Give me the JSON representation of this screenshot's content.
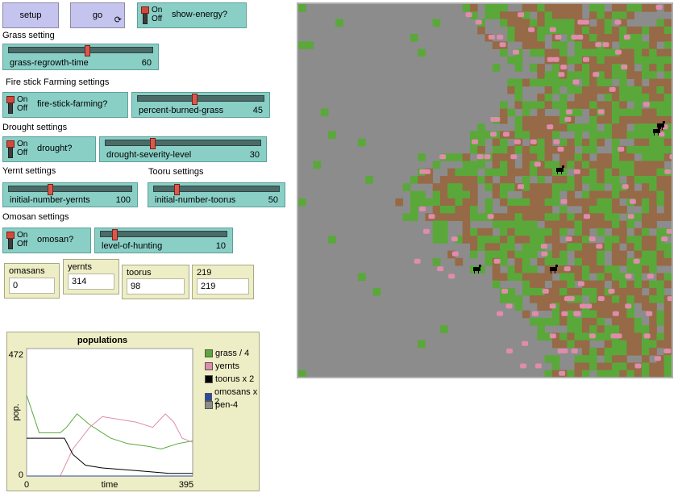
{
  "buttons": {
    "setup": "setup",
    "go": "go"
  },
  "show_energy": {
    "on": "On",
    "off": "Off",
    "label": "show-energy?"
  },
  "sections": {
    "grass": "Grass setting",
    "fire": "Fire stick Farming settings",
    "drought": "Drought settings",
    "yernt": "Yernt settings",
    "tooru": "Tooru settings",
    "omosan": "Omosan settings"
  },
  "sliders": {
    "grass_regrowth": {
      "name": "grass-regrowth-time",
      "value": "60",
      "fraction": 0.55
    },
    "percent_burned": {
      "name": "percent-burned-grass",
      "value": "45",
      "fraction": 0.45
    },
    "drought_severity": {
      "name": "drought-severity-level",
      "value": "30",
      "fraction": 0.3
    },
    "initial_yernts": {
      "name": "initial-number-yernts",
      "value": "100",
      "fraction": 0.33
    },
    "initial_toorus": {
      "name": "initial-number-toorus",
      "value": "50",
      "fraction": 0.17
    },
    "level_hunting": {
      "name": "level-of-hunting",
      "value": "10",
      "fraction": 0.1
    }
  },
  "switches": {
    "fire": {
      "on": "On",
      "off": "Off",
      "label": "fire-stick-farming?"
    },
    "drought": {
      "on": "On",
      "off": "Off",
      "label": "drought?"
    },
    "omosan": {
      "on": "On",
      "off": "Off",
      "label": "omosan?"
    }
  },
  "monitors": [
    {
      "label": "omasans",
      "value": "0"
    },
    {
      "label": "yernts",
      "value": "314"
    },
    {
      "label": "toorus",
      "value": "98"
    },
    {
      "label": "219",
      "value": "219"
    }
  ],
  "colors": {
    "grass": "#5aa83a",
    "dirt": "#966a46",
    "world": "#8c8c8c",
    "yernt": "#e08cac",
    "tooru": "#000000"
  },
  "chart_data": {
    "type": "line",
    "title": "populations",
    "xlabel": "time",
    "ylabel": "pop.",
    "xlim": [
      0,
      395
    ],
    "ylim": [
      0,
      472
    ],
    "x_ticks": [
      "0",
      "395"
    ],
    "y_ticks": [
      "0",
      "472"
    ],
    "series": [
      {
        "name": "grass / 4",
        "color": "#5aa83a",
        "x": [
          0,
          30,
          80,
          95,
          120,
          150,
          180,
          200,
          240,
          290,
          320,
          360,
          395
        ],
        "values": [
          300,
          160,
          160,
          180,
          230,
          190,
          160,
          140,
          120,
          110,
          100,
          120,
          130
        ]
      },
      {
        "name": "yernts",
        "color": "#e08cac",
        "x": [
          0,
          80,
          110,
          150,
          180,
          220,
          260,
          300,
          330,
          350,
          370,
          395
        ],
        "values": [
          0,
          0,
          100,
          180,
          220,
          210,
          200,
          180,
          230,
          200,
          140,
          125
        ]
      },
      {
        "name": "toorus x 2",
        "color": "#000000",
        "x": [
          0,
          90,
          110,
          140,
          180,
          220,
          260,
          300,
          340,
          395
        ],
        "values": [
          140,
          140,
          80,
          40,
          30,
          25,
          20,
          15,
          10,
          10
        ]
      },
      {
        "name": "omosans x 2",
        "color": "#2c4a9c",
        "x": [
          0,
          395
        ],
        "values": [
          0,
          0
        ]
      },
      {
        "name": "pen-4",
        "color": "#8c8c8c",
        "x": [],
        "values": []
      }
    ]
  }
}
